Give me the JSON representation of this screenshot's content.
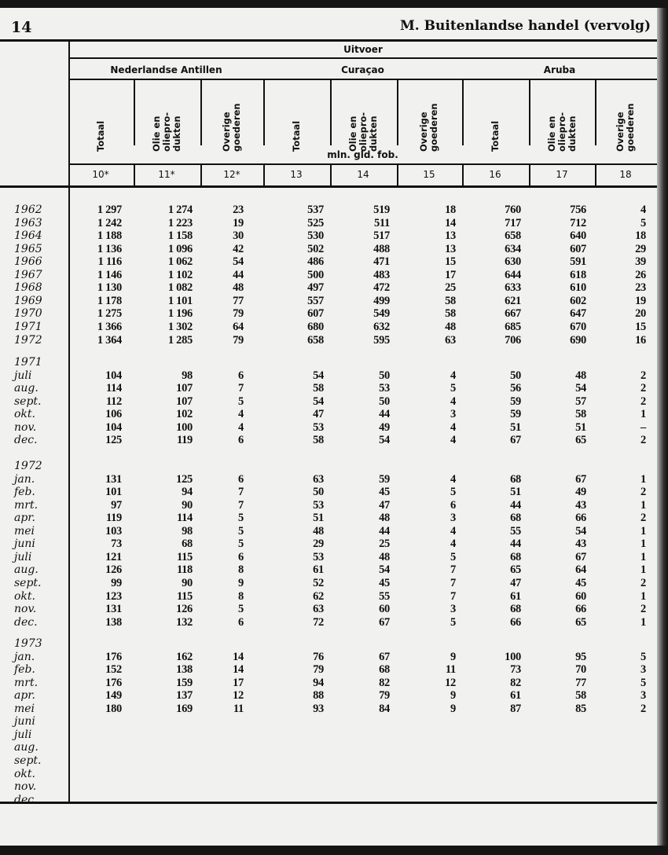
{
  "page_number": "14",
  "running_head": "M. Buitenlandse handel (vervolg)",
  "header": {
    "top": "Uitvoer",
    "groups": [
      "Nederlandse Antillen",
      "Curaçao",
      "Aruba"
    ],
    "columns": [
      "Totaal",
      "Olie en\noliepro-\ndukten",
      "Overige\ngoederen",
      "Totaal",
      "Olie en\noliepro-\ndukten",
      "Overige\ngoederen",
      "Totaal",
      "Olie en\noliepro-\ndukten",
      "Overige\ngoederen"
    ],
    "unit": "mln. gld. fob.",
    "column_numbers": [
      "10*",
      "11*",
      "12*",
      "13",
      "14",
      "15",
      "16",
      "17",
      "18"
    ]
  },
  "annual": [
    {
      "label": "1962",
      "values": [
        "1 297",
        "1 274",
        "23",
        "537",
        "519",
        "18",
        "760",
        "756",
        "4"
      ]
    },
    {
      "label": "1963",
      "values": [
        "1 242",
        "1 223",
        "19",
        "525",
        "511",
        "14",
        "717",
        "712",
        "5"
      ]
    },
    {
      "label": "1964",
      "values": [
        "1 188",
        "1 158",
        "30",
        "530",
        "517",
        "13",
        "658",
        "640",
        "18"
      ]
    },
    {
      "label": "1965",
      "values": [
        "1 136",
        "1 096",
        "42",
        "502",
        "488",
        "13",
        "634",
        "607",
        "29"
      ]
    },
    {
      "label": "1966",
      "values": [
        "1 116",
        "1 062",
        "54",
        "486",
        "471",
        "15",
        "630",
        "591",
        "39"
      ]
    },
    {
      "label": "1967",
      "values": [
        "1 146",
        "1 102",
        "44",
        "500",
        "483",
        "17",
        "644",
        "618",
        "26"
      ]
    },
    {
      "label": "1968",
      "values": [
        "1 130",
        "1 082",
        "48",
        "497",
        "472",
        "25",
        "633",
        "610",
        "23"
      ]
    },
    {
      "label": "1969",
      "values": [
        "1 178",
        "1 101",
        "77",
        "557",
        "499",
        "58",
        "621",
        "602",
        "19"
      ]
    },
    {
      "label": "1970",
      "values": [
        "1 275",
        "1 196",
        "79",
        "607",
        "549",
        "58",
        "667",
        "647",
        "20"
      ]
    },
    {
      "label": "1971",
      "values": [
        "1 366",
        "1 302",
        "64",
        "680",
        "632",
        "48",
        "685",
        "670",
        "15"
      ]
    },
    {
      "label": "1972",
      "values": [
        "1 364",
        "1 285",
        "79",
        "658",
        "595",
        "63",
        "706",
        "690",
        "16"
      ]
    }
  ],
  "monthly": [
    {
      "year": "1971",
      "rows": [
        {
          "label": "juli",
          "values": [
            "104",
            "98",
            "6",
            "54",
            "50",
            "4",
            "50",
            "48",
            "2"
          ]
        },
        {
          "label": "aug.",
          "values": [
            "114",
            "107",
            "7",
            "58",
            "53",
            "5",
            "56",
            "54",
            "2"
          ]
        },
        {
          "label": "sept.",
          "values": [
            "112",
            "107",
            "5",
            "54",
            "50",
            "4",
            "59",
            "57",
            "2"
          ]
        },
        {
          "label": "okt.",
          "values": [
            "106",
            "102",
            "4",
            "47",
            "44",
            "3",
            "59",
            "58",
            "1"
          ]
        },
        {
          "label": "nov.",
          "values": [
            "104",
            "100",
            "4",
            "53",
            "49",
            "4",
            "51",
            "51",
            "–"
          ]
        },
        {
          "label": "dec.",
          "values": [
            "125",
            "119",
            "6",
            "58",
            "54",
            "4",
            "67",
            "65",
            "2"
          ]
        }
      ]
    },
    {
      "year": "1972",
      "rows": [
        {
          "label": "jan.",
          "values": [
            "131",
            "125",
            "6",
            "63",
            "59",
            "4",
            "68",
            "67",
            "1"
          ]
        },
        {
          "label": "feb.",
          "values": [
            "101",
            "94",
            "7",
            "50",
            "45",
            "5",
            "51",
            "49",
            "2"
          ]
        },
        {
          "label": "mrt.",
          "values": [
            "97",
            "90",
            "7",
            "53",
            "47",
            "6",
            "44",
            "43",
            "1"
          ]
        },
        {
          "label": "apr.",
          "values": [
            "119",
            "114",
            "5",
            "51",
            "48",
            "3",
            "68",
            "66",
            "2"
          ]
        },
        {
          "label": "mei",
          "values": [
            "103",
            "98",
            "5",
            "48",
            "44",
            "4",
            "55",
            "54",
            "1"
          ]
        },
        {
          "label": "juni",
          "values": [
            "73",
            "68",
            "5",
            "29",
            "25",
            "4",
            "44",
            "43",
            "1"
          ]
        },
        {
          "label": "juli",
          "values": [
            "121",
            "115",
            "6",
            "53",
            "48",
            "5",
            "68",
            "67",
            "1"
          ]
        },
        {
          "label": "aug.",
          "values": [
            "126",
            "118",
            "8",
            "61",
            "54",
            "7",
            "65",
            "64",
            "1"
          ]
        },
        {
          "label": "sept.",
          "values": [
            "99",
            "90",
            "9",
            "52",
            "45",
            "7",
            "47",
            "45",
            "2"
          ]
        },
        {
          "label": "okt.",
          "values": [
            "123",
            "115",
            "8",
            "62",
            "55",
            "7",
            "61",
            "60",
            "1"
          ]
        },
        {
          "label": "nov.",
          "values": [
            "131",
            "126",
            "5",
            "63",
            "60",
            "3",
            "68",
            "66",
            "2"
          ]
        },
        {
          "label": "dec.",
          "values": [
            "138",
            "132",
            "6",
            "72",
            "67",
            "5",
            "66",
            "65",
            "1"
          ]
        }
      ]
    },
    {
      "year": "1973",
      "rows": [
        {
          "label": "jan.",
          "values": [
            "176",
            "162",
            "14",
            "76",
            "67",
            "9",
            "100",
            "95",
            "5"
          ]
        },
        {
          "label": "feb.",
          "values": [
            "152",
            "138",
            "14",
            "79",
            "68",
            "11",
            "73",
            "70",
            "3"
          ]
        },
        {
          "label": "mrt.",
          "values": [
            "176",
            "159",
            "17",
            "94",
            "82",
            "12",
            "82",
            "77",
            "5"
          ]
        },
        {
          "label": "apr.",
          "values": [
            "149",
            "137",
            "12",
            "88",
            "79",
            "9",
            "61",
            "58",
            "3"
          ]
        },
        {
          "label": "mei",
          "values": [
            "180",
            "169",
            "11",
            "93",
            "84",
            "9",
            "87",
            "85",
            "2"
          ]
        },
        {
          "label": "juni",
          "values": []
        },
        {
          "label": "juli",
          "values": []
        },
        {
          "label": "aug.",
          "values": []
        },
        {
          "label": "sept.",
          "values": []
        },
        {
          "label": "okt.",
          "values": []
        },
        {
          "label": "nov.",
          "values": []
        },
        {
          "label": "dec.",
          "values": []
        }
      ]
    }
  ]
}
